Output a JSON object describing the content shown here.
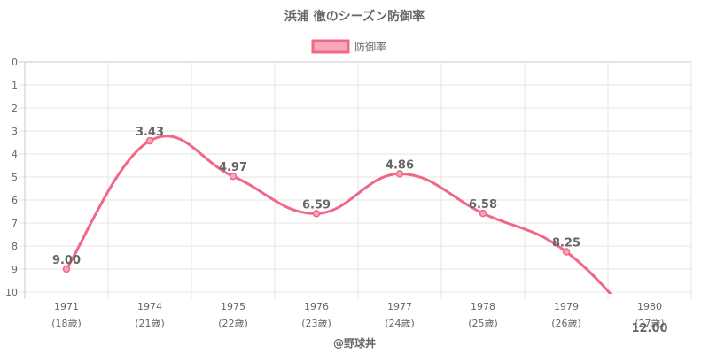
{
  "chart_data": {
    "type": "line",
    "title": "浜浦 徹のシーズン防御率",
    "categories": [
      "1971",
      "1974",
      "1975",
      "1976",
      "1977",
      "1978",
      "1979",
      "1980"
    ],
    "sublabels": [
      "(18歳)",
      "(21歳)",
      "(22歳)",
      "(23歳)",
      "(24歳)",
      "(25歳)",
      "(26歳)",
      "(27歳)"
    ],
    "series": [
      {
        "name": "防御率",
        "values": [
          9.0,
          3.43,
          4.97,
          6.59,
          4.86,
          6.58,
          8.25,
          12.0
        ],
        "labels": [
          "9.00",
          "3.43",
          "4.97",
          "6.59",
          "4.86",
          "6.58",
          "8.25",
          "12.00"
        ],
        "color": "#f06788",
        "fill": "#f7a8b8"
      }
    ],
    "yticks": [
      "0",
      "1",
      "2",
      "3",
      "4",
      "5",
      "6",
      "7",
      "8",
      "9",
      "10"
    ],
    "ylim": [
      0,
      10
    ],
    "y_reversed": true,
    "legend": "top-center",
    "grid": true
  },
  "credit": "@野球丼"
}
